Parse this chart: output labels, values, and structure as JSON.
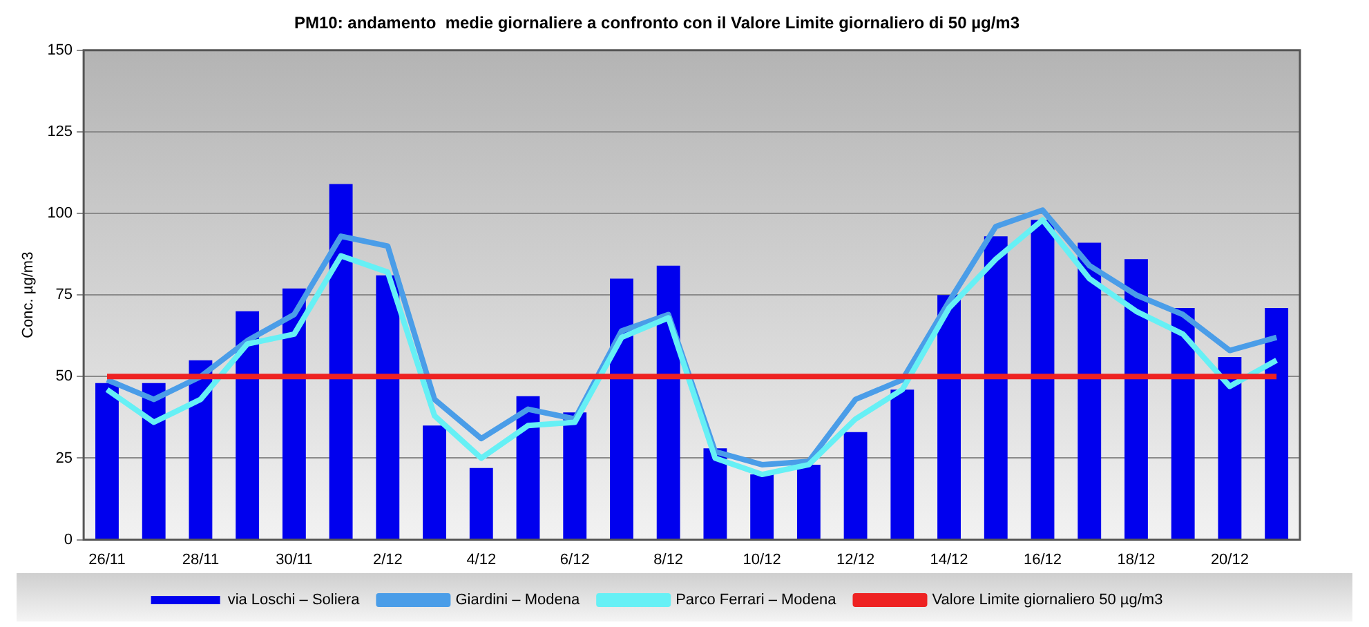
{
  "chart_data": {
    "type": "bar",
    "title": "PM10: andamento  medie giornaliere a confronto con il Valore Limite giornaliero di 50 µg/m3",
    "ylabel": "Conc. µg/m3",
    "categories": [
      "26/11",
      null,
      "28/11",
      null,
      "30/11",
      null,
      "2/12",
      null,
      "4/12",
      null,
      "6/12",
      null,
      "8/12",
      null,
      "10/12",
      null,
      "12/12",
      null,
      "14/12",
      null,
      "16/12",
      null,
      "18/12",
      null,
      "20/12",
      null
    ],
    "series": [
      {
        "name": "via Loschi – Soliera",
        "color": "#0000ee",
        "values": [
          48,
          48,
          55,
          70,
          77,
          109,
          81,
          35,
          22,
          44,
          39,
          80,
          84,
          28,
          20,
          23,
          33,
          46,
          75,
          93,
          98,
          91,
          86,
          71,
          56,
          71
        ]
      },
      {
        "name": "Giardini – Modena",
        "type": "line",
        "color": "#4a9de8",
        "values": [
          49,
          43,
          50,
          61,
          69,
          93,
          90,
          43,
          31,
          40,
          37,
          64,
          69,
          27,
          23,
          24,
          43,
          49,
          73,
          96,
          101,
          84,
          75,
          69,
          58,
          62
        ]
      },
      {
        "name": "Parco Ferrari – Modena",
        "type": "line",
        "color": "#66f0f5",
        "values": [
          46,
          36,
          43,
          60,
          63,
          87,
          82,
          38,
          25,
          35,
          36,
          62,
          68,
          25,
          20,
          23,
          37,
          46,
          71,
          86,
          98,
          80,
          70,
          63,
          47,
          55
        ]
      },
      {
        "name": "Valore Limite giornaliero 50 µg/m3",
        "type": "line",
        "color": "#ee2222",
        "values": [
          50,
          50,
          50,
          50,
          50,
          50,
          50,
          50,
          50,
          50,
          50,
          50,
          50,
          50,
          50,
          50,
          50,
          50,
          50,
          50,
          50,
          50,
          50,
          50,
          50,
          50
        ]
      }
    ],
    "ylim": [
      0,
      150
    ],
    "yticks": [
      0,
      25,
      50,
      75,
      100,
      125,
      150
    ],
    "grid": "y",
    "legend": "bottom",
    "marker": "none"
  }
}
